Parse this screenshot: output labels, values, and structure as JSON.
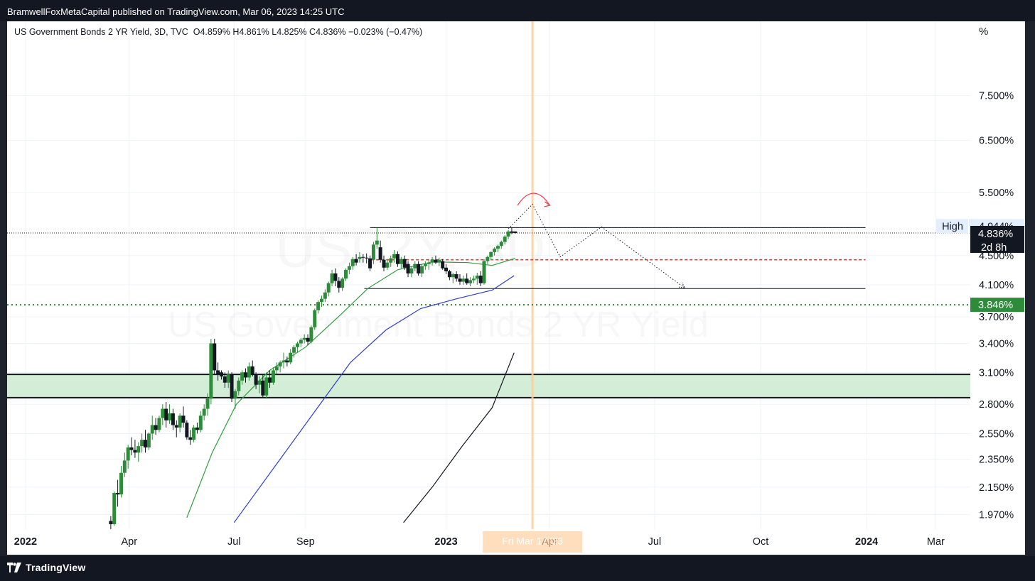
{
  "header": {
    "text": "BramwellFoxMetaCapital published on TradingView.com, Mar 06, 2023 14:25 UTC"
  },
  "footer": {
    "brand": "TradingView"
  },
  "chart_data": {
    "type": "candlestick",
    "title": "US Government Bonds 2 YR Yield, 3D, TVC",
    "ohlc_label": "O4.859%  H4.861%  L4.825%  C4.836%  −0.023% (−0.47%)",
    "watermark_symbol": "US02Y, 3D",
    "watermark_name": "US Government Bonds 2 YR Yield",
    "y_unit": "%",
    "y_scale": "log",
    "ylim": [
      1.88,
      9.5
    ],
    "xlim": [
      "2021-12-16",
      "2024-03-31"
    ],
    "y_ticks": [
      {
        "v": 7.5,
        "label": "7.500%"
      },
      {
        "v": 6.5,
        "label": "6.500%"
      },
      {
        "v": 5.5,
        "label": "5.500%"
      },
      {
        "v": 4.5,
        "label": "4.500%"
      },
      {
        "v": 4.1,
        "label": "4.100%"
      },
      {
        "v": 3.7,
        "label": "3.700%"
      },
      {
        "v": 3.4,
        "label": "3.400%"
      },
      {
        "v": 3.1,
        "label": "3.100%"
      },
      {
        "v": 2.8,
        "label": "2.800%"
      },
      {
        "v": 2.55,
        "label": "2.550%"
      },
      {
        "v": 2.35,
        "label": "2.350%"
      },
      {
        "v": 2.15,
        "label": "2.150%"
      },
      {
        "v": 1.97,
        "label": "1.970%"
      }
    ],
    "x_ticks": [
      {
        "date": "2022-01-01",
        "label": "2022",
        "bold": true
      },
      {
        "date": "2022-04-01",
        "label": "Apr",
        "bold": false
      },
      {
        "date": "2022-07-01",
        "label": "Jul",
        "bold": false
      },
      {
        "date": "2022-09-01",
        "label": "Sep",
        "bold": false
      },
      {
        "date": "2023-01-01",
        "label": "2023",
        "bold": true
      },
      {
        "date": "2023-04-01",
        "label": "Apr",
        "bold": false
      },
      {
        "date": "2023-07-01",
        "label": "Jul",
        "bold": false
      },
      {
        "date": "2023-10-01",
        "label": "Oct",
        "bold": false
      },
      {
        "date": "2024-01-01",
        "label": "2024",
        "bold": true
      },
      {
        "date": "2024-03-01",
        "label": "Mar",
        "bold": false
      }
    ],
    "cursor": {
      "date": "2023-03-17",
      "label": "Fri Mar 17 '23"
    },
    "price_labels": [
      {
        "v": 4.944,
        "text": "4.944%",
        "tag": "High",
        "style": "high"
      },
      {
        "v": 4.836,
        "text": "4.836%",
        "sub": "2d 8h",
        "style": "last"
      },
      {
        "v": 3.846,
        "text": "3.846%",
        "style": "green"
      }
    ],
    "horizontal_levels": [
      {
        "name": "resistance",
        "v": 4.92,
        "from": "2022-10-27",
        "to": "2023-12-31",
        "color": "#131722",
        "dash": "none"
      },
      {
        "name": "support",
        "v": 4.05,
        "from": "2022-10-22",
        "to": "2023-12-31",
        "color": "#131722",
        "dash": "none"
      },
      {
        "name": "mid-level",
        "v": 4.44,
        "from": "2022-10-28",
        "to": "2023-12-31",
        "color": "#f23645",
        "dash": "4,3"
      },
      {
        "name": "last-price",
        "v": 4.836,
        "from": "2021-12-16",
        "to": "2024-03-31",
        "color": "#131722",
        "dash": "1,2"
      },
      {
        "name": "green-level",
        "v": 3.846,
        "from": "2021-12-16",
        "to": "2024-03-31",
        "color": "#2e7d32",
        "dash": "2,4"
      }
    ],
    "demand_zone": {
      "from": 2.86,
      "to": 3.08,
      "color": "#d4edd6"
    },
    "projection_path": [
      {
        "date": "2023-02-24",
        "v": 4.9
      },
      {
        "date": "2023-03-17",
        "v": 5.3
      },
      {
        "date": "2023-04-10",
        "v": 4.48
      },
      {
        "date": "2023-05-16",
        "v": 4.93
      },
      {
        "date": "2023-07-27",
        "v": 4.06
      }
    ],
    "arc": {
      "from": "2023-03-04",
      "to": "2023-04-01",
      "v": 5.33
    },
    "moving_averages": [
      {
        "name": "MA short",
        "color": "#2e9e3e",
        "points": [
          [
            "2022-05-21",
            1.95
          ],
          [
            "2022-06-12",
            2.4
          ],
          [
            "2022-07-03",
            2.8
          ],
          [
            "2022-08-01",
            3.12
          ],
          [
            "2022-09-01",
            3.36
          ],
          [
            "2022-10-01",
            3.72
          ],
          [
            "2022-10-25",
            4.05
          ],
          [
            "2022-11-20",
            4.3
          ],
          [
            "2022-12-20",
            4.41
          ],
          [
            "2023-01-20",
            4.4
          ],
          [
            "2023-02-10",
            4.36
          ],
          [
            "2023-03-02",
            4.46
          ]
        ]
      },
      {
        "name": "MA mid",
        "color": "#2f3ccf",
        "points": [
          [
            "2022-07-01",
            1.92
          ],
          [
            "2022-08-10",
            2.35
          ],
          [
            "2022-09-10",
            2.75
          ],
          [
            "2022-10-10",
            3.2
          ],
          [
            "2022-11-10",
            3.55
          ],
          [
            "2022-12-10",
            3.8
          ],
          [
            "2023-01-10",
            3.92
          ],
          [
            "2023-02-10",
            4.03
          ],
          [
            "2023-03-01",
            4.22
          ]
        ]
      },
      {
        "name": "MA long",
        "color": "#131722",
        "points": [
          [
            "2022-11-25",
            1.92
          ],
          [
            "2022-12-20",
            2.15
          ],
          [
            "2023-01-15",
            2.45
          ],
          [
            "2023-02-10",
            2.77
          ],
          [
            "2023-03-01",
            3.3
          ]
        ]
      }
    ],
    "candles": [
      [
        "2022-03-16",
        1.93,
        1.96,
        1.88,
        1.91
      ],
      [
        "2022-03-19",
        1.91,
        2.12,
        1.9,
        2.11
      ],
      [
        "2022-03-22",
        2.11,
        2.2,
        2.02,
        2.1
      ],
      [
        "2022-03-25",
        2.1,
        2.3,
        2.08,
        2.25
      ],
      [
        "2022-03-28",
        2.25,
        2.4,
        2.22,
        2.34
      ],
      [
        "2022-03-31",
        2.34,
        2.46,
        2.28,
        2.44
      ],
      [
        "2022-04-03",
        2.44,
        2.52,
        2.38,
        2.42
      ],
      [
        "2022-04-06",
        2.42,
        2.5,
        2.36,
        2.4
      ],
      [
        "2022-04-09",
        2.4,
        2.48,
        2.33,
        2.45
      ],
      [
        "2022-04-12",
        2.45,
        2.55,
        2.4,
        2.5
      ],
      [
        "2022-04-15",
        2.5,
        2.58,
        2.4,
        2.44
      ],
      [
        "2022-04-18",
        2.44,
        2.56,
        2.42,
        2.55
      ],
      [
        "2022-04-21",
        2.55,
        2.7,
        2.5,
        2.62
      ],
      [
        "2022-04-24",
        2.62,
        2.68,
        2.54,
        2.58
      ],
      [
        "2022-04-27",
        2.58,
        2.7,
        2.56,
        2.68
      ],
      [
        "2022-04-30",
        2.68,
        2.8,
        2.62,
        2.76
      ],
      [
        "2022-05-03",
        2.76,
        2.82,
        2.6,
        2.66
      ],
      [
        "2022-05-06",
        2.66,
        2.8,
        2.63,
        2.72
      ],
      [
        "2022-05-09",
        2.72,
        2.76,
        2.58,
        2.62
      ],
      [
        "2022-05-12",
        2.62,
        2.66,
        2.52,
        2.6
      ],
      [
        "2022-05-15",
        2.6,
        2.72,
        2.56,
        2.7
      ],
      [
        "2022-05-18",
        2.7,
        2.78,
        2.6,
        2.64
      ],
      [
        "2022-05-21",
        2.64,
        2.66,
        2.5,
        2.52
      ],
      [
        "2022-05-24",
        2.52,
        2.58,
        2.46,
        2.5
      ],
      [
        "2022-05-27",
        2.5,
        2.62,
        2.48,
        2.6
      ],
      [
        "2022-05-30",
        2.6,
        2.64,
        2.55,
        2.58
      ],
      [
        "2022-06-02",
        2.58,
        2.74,
        2.56,
        2.7
      ],
      [
        "2022-06-05",
        2.7,
        2.8,
        2.66,
        2.76
      ],
      [
        "2022-06-08",
        2.76,
        2.9,
        2.7,
        2.85
      ],
      [
        "2022-06-11",
        2.85,
        3.45,
        2.8,
        3.4
      ],
      [
        "2022-06-14",
        3.4,
        3.45,
        3.08,
        3.12
      ],
      [
        "2022-06-17",
        3.12,
        3.2,
        3.02,
        3.08
      ],
      [
        "2022-06-20",
        3.1,
        3.12,
        3.03,
        3.06
      ],
      [
        "2022-06-23",
        3.06,
        3.1,
        2.95,
        3.0
      ],
      [
        "2022-06-26",
        3.0,
        3.12,
        2.95,
        3.08
      ],
      [
        "2022-06-29",
        3.08,
        3.1,
        2.82,
        2.85
      ],
      [
        "2022-07-02",
        2.85,
        2.94,
        2.76,
        2.92
      ],
      [
        "2022-07-05",
        2.92,
        3.05,
        2.88,
        3.02
      ],
      [
        "2022-07-08",
        3.02,
        3.12,
        2.98,
        3.1
      ],
      [
        "2022-07-11",
        3.1,
        3.14,
        3.0,
        3.05
      ],
      [
        "2022-07-14",
        3.05,
        3.2,
        3.02,
        3.16
      ],
      [
        "2022-07-17",
        3.16,
        3.22,
        3.06,
        3.08
      ],
      [
        "2022-07-20",
        3.08,
        3.1,
        2.94,
        2.98
      ],
      [
        "2022-07-23",
        2.98,
        3.06,
        2.9,
        3.02
      ],
      [
        "2022-07-26",
        3.02,
        3.08,
        2.86,
        2.88
      ],
      [
        "2022-07-29",
        2.88,
        3.1,
        2.85,
        3.05
      ],
      [
        "2022-08-01",
        3.05,
        3.12,
        2.95,
        3.0
      ],
      [
        "2022-08-04",
        3.0,
        3.15,
        2.98,
        3.12
      ],
      [
        "2022-08-07",
        3.12,
        3.2,
        3.08,
        3.16
      ],
      [
        "2022-08-10",
        3.16,
        3.22,
        3.1,
        3.2
      ],
      [
        "2022-08-13",
        3.2,
        3.3,
        3.14,
        3.22
      ],
      [
        "2022-08-16",
        3.22,
        3.26,
        3.16,
        3.2
      ],
      [
        "2022-08-19",
        3.2,
        3.34,
        3.18,
        3.3
      ],
      [
        "2022-08-22",
        3.3,
        3.38,
        3.25,
        3.36
      ],
      [
        "2022-08-25",
        3.36,
        3.42,
        3.3,
        3.4
      ],
      [
        "2022-08-28",
        3.4,
        3.46,
        3.36,
        3.44
      ],
      [
        "2022-08-31",
        3.44,
        3.5,
        3.4,
        3.46
      ],
      [
        "2022-09-03",
        3.46,
        3.5,
        3.38,
        3.42
      ],
      [
        "2022-09-06",
        3.42,
        3.6,
        3.4,
        3.58
      ],
      [
        "2022-09-09",
        3.58,
        3.8,
        3.55,
        3.78
      ],
      [
        "2022-09-12",
        3.78,
        3.9,
        3.74,
        3.88
      ],
      [
        "2022-09-15",
        3.88,
        3.96,
        3.82,
        3.92
      ],
      [
        "2022-09-18",
        3.92,
        4.04,
        3.88,
        4.0
      ],
      [
        "2022-09-21",
        4.0,
        4.14,
        3.95,
        4.12
      ],
      [
        "2022-09-24",
        4.12,
        4.3,
        4.08,
        4.25
      ],
      [
        "2022-09-27",
        4.25,
        4.32,
        4.08,
        4.15
      ],
      [
        "2022-09-30",
        4.15,
        4.2,
        4.0,
        4.06
      ],
      [
        "2022-10-03",
        4.06,
        4.2,
        4.02,
        4.18
      ],
      [
        "2022-10-06",
        4.18,
        4.32,
        4.15,
        4.3
      ],
      [
        "2022-10-09",
        4.3,
        4.4,
        4.24,
        4.35
      ],
      [
        "2022-10-12",
        4.35,
        4.48,
        4.3,
        4.45
      ],
      [
        "2022-10-15",
        4.45,
        4.52,
        4.36,
        4.4
      ],
      [
        "2022-10-18",
        4.45,
        4.55,
        4.4,
        4.48
      ],
      [
        "2022-10-21",
        4.48,
        4.52,
        4.4,
        4.47
      ],
      [
        "2022-10-24",
        4.47,
        4.53,
        4.39,
        4.46
      ],
      [
        "2022-10-27",
        4.46,
        4.5,
        4.28,
        4.32
      ],
      [
        "2022-10-30",
        4.44,
        4.7,
        4.38,
        4.66
      ],
      [
        "2022-11-02",
        4.66,
        4.92,
        4.6,
        4.72
      ],
      [
        "2022-11-05",
        4.62,
        4.72,
        4.4,
        4.44
      ],
      [
        "2022-11-08",
        4.44,
        4.5,
        4.28,
        4.33
      ],
      [
        "2022-11-11",
        4.33,
        4.45,
        4.3,
        4.4
      ],
      [
        "2022-11-14",
        4.4,
        4.5,
        4.34,
        4.46
      ],
      [
        "2022-11-17",
        4.46,
        4.58,
        4.4,
        4.52
      ],
      [
        "2022-11-20",
        4.52,
        4.56,
        4.34,
        4.38
      ],
      [
        "2022-11-23",
        4.38,
        4.48,
        4.32,
        4.45
      ],
      [
        "2022-11-26",
        4.45,
        4.5,
        4.3,
        4.33
      ],
      [
        "2022-11-29",
        4.38,
        4.42,
        4.2,
        4.25
      ],
      [
        "2022-12-02",
        4.25,
        4.35,
        4.2,
        4.32
      ],
      [
        "2022-12-05",
        4.32,
        4.42,
        4.28,
        4.38
      ],
      [
        "2022-12-08",
        4.38,
        4.42,
        4.22,
        4.25
      ],
      [
        "2022-12-11",
        4.25,
        4.38,
        4.2,
        4.35
      ],
      [
        "2022-12-14",
        4.35,
        4.42,
        4.3,
        4.38
      ],
      [
        "2022-12-17",
        4.38,
        4.45,
        4.3,
        4.4
      ],
      [
        "2022-12-20",
        4.4,
        4.48,
        4.36,
        4.44
      ],
      [
        "2022-12-23",
        4.44,
        4.5,
        4.38,
        4.4
      ],
      [
        "2022-12-26",
        4.4,
        4.47,
        4.35,
        4.44
      ],
      [
        "2022-12-29",
        4.42,
        4.45,
        4.3,
        4.32
      ],
      [
        "2023-01-01",
        4.33,
        4.38,
        4.24,
        4.28
      ],
      [
        "2023-01-04",
        4.28,
        4.3,
        4.16,
        4.2
      ],
      [
        "2023-01-07",
        4.2,
        4.26,
        4.12,
        4.24
      ],
      [
        "2023-01-10",
        4.24,
        4.28,
        4.14,
        4.18
      ],
      [
        "2023-01-13",
        4.18,
        4.24,
        4.1,
        4.14
      ],
      [
        "2023-01-16",
        4.14,
        4.22,
        4.1,
        4.18
      ],
      [
        "2023-01-19",
        4.18,
        4.25,
        4.1,
        4.12
      ],
      [
        "2023-01-22",
        4.12,
        4.2,
        4.08,
        4.16
      ],
      [
        "2023-01-25",
        4.16,
        4.22,
        4.12,
        4.18
      ],
      [
        "2023-01-28",
        4.18,
        4.26,
        4.1,
        4.22
      ],
      [
        "2023-01-31",
        4.22,
        4.28,
        4.08,
        4.12
      ],
      [
        "2023-02-03",
        4.12,
        4.45,
        4.1,
        4.42
      ],
      [
        "2023-02-06",
        4.42,
        4.5,
        4.38,
        4.48
      ],
      [
        "2023-02-09",
        4.48,
        4.56,
        4.44,
        4.55
      ],
      [
        "2023-02-12",
        4.55,
        4.62,
        4.5,
        4.6
      ],
      [
        "2023-02-15",
        4.6,
        4.66,
        4.55,
        4.64
      ],
      [
        "2023-02-18",
        4.64,
        4.72,
        4.6,
        4.7
      ],
      [
        "2023-02-21",
        4.7,
        4.8,
        4.66,
        4.78
      ],
      [
        "2023-02-24",
        4.78,
        4.88,
        4.74,
        4.86
      ],
      [
        "2023-02-27",
        4.86,
        4.92,
        4.82,
        4.84
      ],
      [
        "2023-03-02",
        4.859,
        4.861,
        4.825,
        4.836
      ]
    ]
  }
}
